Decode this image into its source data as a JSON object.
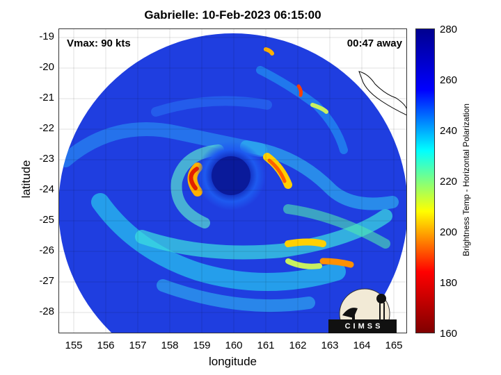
{
  "title": "Gabrielle: 10-Feb-2023 06:15:00",
  "vmax_label": "Vmax: 90 kts",
  "time_away_label": "00:47 away",
  "x_axis": {
    "label": "longitude",
    "ticks": [
      "155",
      "156",
      "157",
      "158",
      "159",
      "160",
      "161",
      "162",
      "163",
      "164",
      "165"
    ],
    "range": [
      154.6,
      165.5
    ]
  },
  "y_axis": {
    "label": "latitude",
    "ticks": [
      "-19",
      "-20",
      "-21",
      "-22",
      "-23",
      "-24",
      "-25",
      "-26",
      "-27",
      "-28"
    ],
    "range": [
      -28.7,
      -18.75
    ]
  },
  "colorbar": {
    "label": "Brightness Temp - Horizontal Polarization",
    "ticks": [
      "280",
      "260",
      "240",
      "220",
      "200",
      "180",
      "160"
    ],
    "range": [
      160,
      280
    ],
    "colormap": "jet",
    "colors": [
      "#800000",
      "#ff0000",
      "#ffff00",
      "#00ffff",
      "#0000ff",
      "#00008f"
    ]
  },
  "features": {
    "storm_center": [
      160.0,
      -23.6
    ],
    "background_color": "#1e3fd8",
    "grid": true
  },
  "logo_text": "CIMSS"
}
